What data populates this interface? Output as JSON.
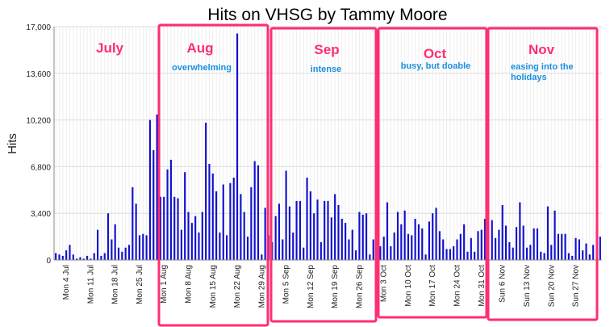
{
  "chart_data": {
    "type": "bar",
    "title": "Hits on VHSG by Tammy Moore",
    "ylabel": "Hits",
    "xlabel": "",
    "ylim": [
      0,
      17000
    ],
    "yticks": [
      "0",
      "3,400",
      "6,800",
      "10,200",
      "13,600",
      "17,000"
    ],
    "grid": true,
    "bar_color": "#1111cc",
    "start_date": "2011-07-01",
    "xticks": [
      {
        "label": "Mon 4 Jul",
        "day": 3
      },
      {
        "label": "Mon 11 Jul",
        "day": 10
      },
      {
        "label": "Mon 18 Jul",
        "day": 17
      },
      {
        "label": "Mon 25 Jul",
        "day": 24
      },
      {
        "label": "Mon 1 Aug",
        "day": 31
      },
      {
        "label": "Mon 8 Aug",
        "day": 38
      },
      {
        "label": "Mon 15 Aug",
        "day": 45
      },
      {
        "label": "Mon 22 Aug",
        "day": 52
      },
      {
        "label": "Mon 29 Aug",
        "day": 59
      },
      {
        "label": "Mon 5 Sep",
        "day": 66
      },
      {
        "label": "Mon 12 Sep",
        "day": 73
      },
      {
        "label": "Mon 19 Sep",
        "day": 80
      },
      {
        "label": "Mon 26 Sep",
        "day": 87
      },
      {
        "label": "Mon 3 Oct",
        "day": 94
      },
      {
        "label": "Mon 10 Oct",
        "day": 101
      },
      {
        "label": "Mon 17 Oct",
        "day": 108
      },
      {
        "label": "Mon 24 Oct",
        "day": 115
      },
      {
        "label": "Mon 31 Oct",
        "day": 122
      },
      {
        "label": "Sun 6 Nov",
        "day": 128
      },
      {
        "label": "Sun 13 Nov",
        "day": 135
      },
      {
        "label": "Sun 20 Nov",
        "day": 142
      },
      {
        "label": "Sun 27 Nov",
        "day": 149
      }
    ],
    "values": [
      500,
      400,
      300,
      700,
      1100,
      400,
      100,
      200,
      100,
      300,
      100,
      500,
      2200,
      300,
      500,
      3400,
      1500,
      2600,
      900,
      600,
      900,
      1100,
      5300,
      4100,
      1800,
      1900,
      1800,
      10200,
      8000,
      10600,
      4600,
      4600,
      6600,
      7300,
      4600,
      4500,
      2200,
      6400,
      3500,
      2700,
      3200,
      2000,
      3500,
      10000,
      7000,
      6300,
      5000,
      2000,
      5500,
      1800,
      5600,
      6000,
      16500,
      4800,
      3500,
      1700,
      5300,
      7200,
      6900,
      400,
      3800,
      1800,
      1300,
      3200,
      4100,
      1500,
      6500,
      3900,
      2000,
      4300,
      4300,
      900,
      6000,
      5000,
      3400,
      4400,
      1300,
      4300,
      4300,
      3100,
      4800,
      4000,
      3000,
      2700,
      1500,
      2200,
      700,
      3500,
      3300,
      3400,
      400,
      1500,
      1800,
      1000,
      1700,
      4200,
      1000,
      2000,
      3500,
      2600,
      3600,
      1900,
      1800,
      3000,
      2600,
      2300,
      400,
      2800,
      3400,
      3800,
      2100,
      1500,
      800,
      800,
      1000,
      1500,
      1900,
      2600,
      600,
      1600,
      600,
      2100,
      2200,
      3000,
      2100,
      2900,
      1600,
      2200,
      4000,
      2500,
      1300,
      900,
      2400,
      4200,
      2500,
      900,
      1100,
      2300,
      2300,
      600,
      500,
      3900,
      1100,
      3600,
      1900,
      1900,
      1900,
      500,
      300,
      1600,
      1500,
      700,
      1200,
      400,
      1100,
      2600,
      1700
    ],
    "month_labels": [
      "July",
      "Aug",
      "Sep",
      "Oct",
      "Nov"
    ],
    "annotations": [
      {
        "month": "Aug",
        "text": "overwhelming"
      },
      {
        "month": "Sep",
        "text": "intense"
      },
      {
        "month": "Oct",
        "text": "busy, but doable"
      },
      {
        "month": "Nov",
        "text": "easing into the holidays"
      }
    ],
    "highlight_color": "#ff2d72",
    "annotation_color": "#1a8fe0"
  }
}
